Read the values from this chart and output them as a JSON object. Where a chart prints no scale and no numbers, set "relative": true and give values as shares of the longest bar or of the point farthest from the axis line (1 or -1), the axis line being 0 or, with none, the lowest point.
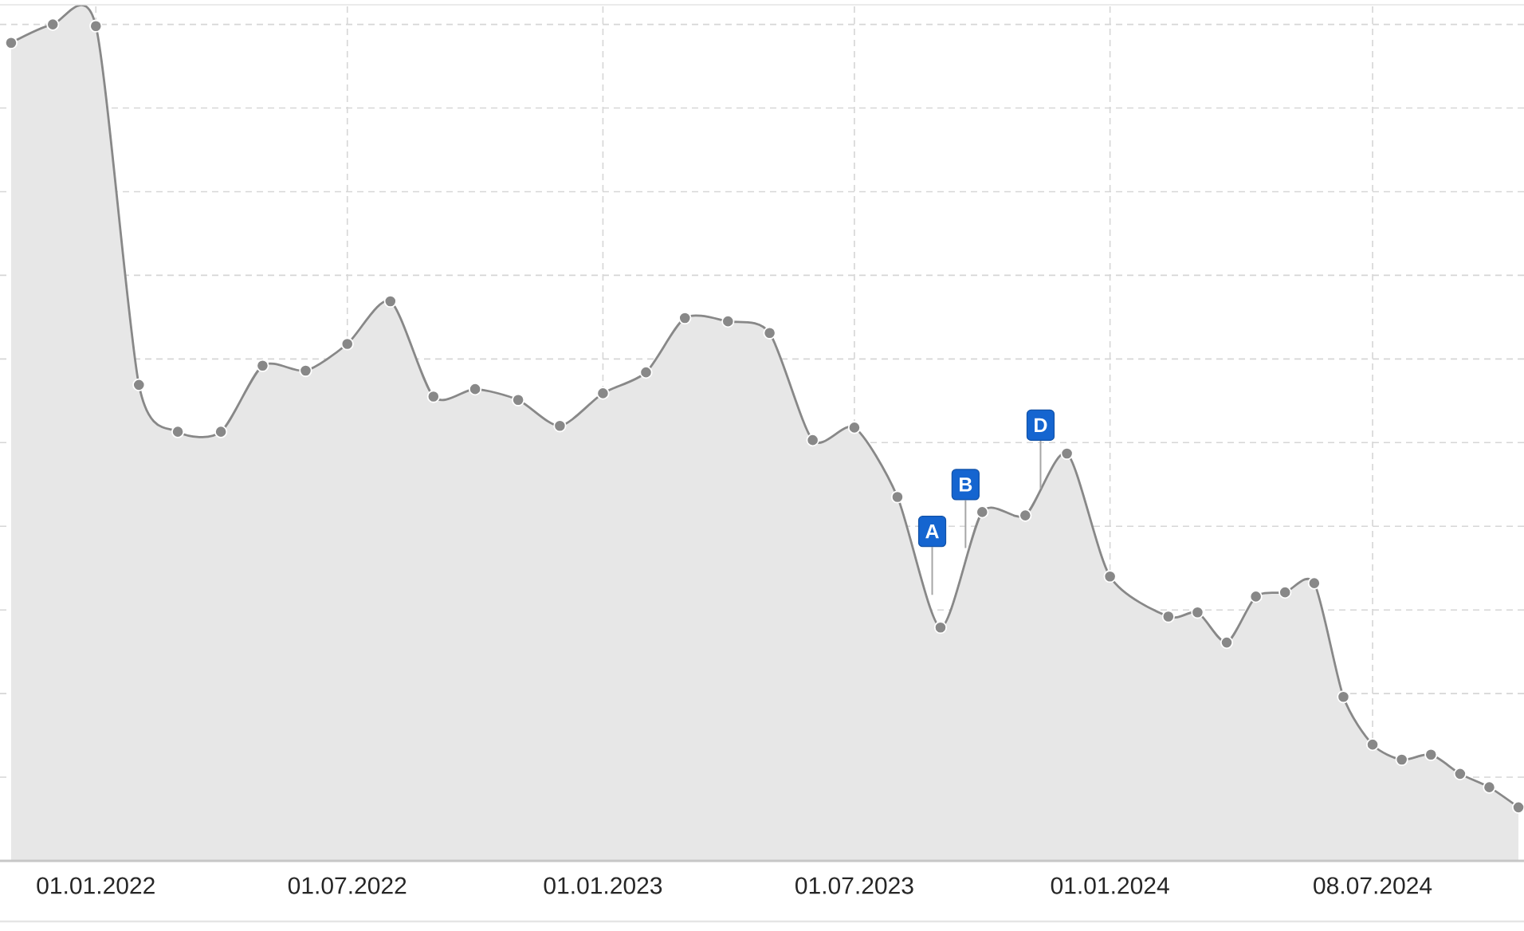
{
  "chart_data": {
    "type": "area",
    "relative": true,
    "color": "#888888",
    "marker": "circle",
    "grid": true,
    "tick_labels": "x",
    "x": [
      "2021-11-01",
      "2021-12-01",
      "2022-01-01",
      "2022-02-01",
      "2022-03-01",
      "2022-04-01",
      "2022-05-01",
      "2022-06-01",
      "2022-07-01",
      "2022-08-01",
      "2022-09-01",
      "2022-10-01",
      "2022-11-01",
      "2022-12-01",
      "2023-01-01",
      "2023-02-01",
      "2023-03-01",
      "2023-04-01",
      "2023-05-01",
      "2023-06-01",
      "2023-07-01",
      "2023-08-01",
      "2023-09-01",
      "2023-10-01",
      "2023-11-01",
      "2023-12-01",
      "2024-01-01",
      "2024-02-12",
      "2024-03-04",
      "2024-03-25",
      "2024-04-15",
      "2024-05-06",
      "2024-05-27",
      "2024-06-17",
      "2024-07-08",
      "2024-07-29",
      "2024-08-19",
      "2024-09-09",
      "2024-09-30",
      "2024-10-21"
    ],
    "values": [
      0.978,
      1,
      0.998,
      0.569,
      0.513,
      0.513,
      0.592,
      0.586,
      0.618,
      0.669,
      0.555,
      0.564,
      0.551,
      0.52,
      0.559,
      0.584,
      0.649,
      0.645,
      0.631,
      0.503,
      0.518,
      0.435,
      0.279,
      0.417,
      0.413,
      0.487,
      0.34,
      0.292,
      0.297,
      0.261,
      0.316,
      0.321,
      0.332,
      0.196,
      0.139,
      0.121,
      0.127,
      0.104,
      0.088,
      0.064
    ],
    "xlim": [
      "2021-10-24",
      "2024-10-25"
    ],
    "xticks": [
      {
        "value": "2022-01-01",
        "label": "01.01.2022"
      },
      {
        "value": "2022-07-01",
        "label": "01.07.2022"
      },
      {
        "value": "2023-01-01",
        "label": "01.01.2023"
      },
      {
        "value": "2023-07-01",
        "label": "01.07.2023"
      },
      {
        "value": "2024-01-01",
        "label": "01.01.2024"
      },
      {
        "value": "2024-07-08",
        "label": "08.07.2024"
      }
    ],
    "annotations": [
      {
        "text": "A",
        "x": "2023-08-26",
        "y": 0.318
      },
      {
        "text": "B",
        "x": "2023-09-19",
        "y": 0.374
      },
      {
        "text": "D",
        "x": "2023-11-12",
        "y": 0.445
      }
    ]
  }
}
